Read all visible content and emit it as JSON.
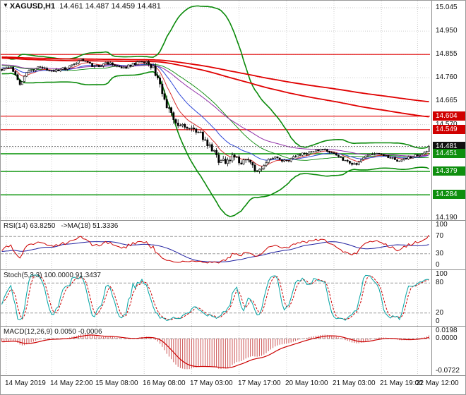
{
  "header": {
    "shift_marker": "▼",
    "symbol_period": "XAGUSD,H1",
    "ohlc_text": "14.461 14.487 14.459 14.481"
  },
  "chart_data": {
    "type": "candlestick",
    "symbol": "XAGUSD",
    "timeframe": "H1",
    "current": {
      "open": 14.461,
      "high": 14.487,
      "low": 14.459,
      "close": 14.481
    },
    "main": {
      "bars_visible": 190,
      "prehistory": {
        "bars": 60,
        "start_price": 14.85
      },
      "y_ticks": [
        [
          15.045,
          "15.045"
        ],
        [
          14.95,
          "14.950"
        ],
        [
          14.855,
          "14.855"
        ],
        [
          14.76,
          "14.760"
        ],
        [
          14.665,
          "14.665"
        ],
        [
          14.57,
          "14.570"
        ],
        [
          14.475,
          "14.475"
        ],
        [
          14.38,
          "14.380"
        ],
        [
          14.285,
          "14.285"
        ],
        [
          14.19,
          "14.190"
        ]
      ],
      "x_labels": [
        {
          "bar": 2,
          "text": "14 May 2019"
        },
        {
          "bar": 22,
          "text": "14 May 22:00"
        },
        {
          "bar": 42,
          "text": "15 May 08:00"
        },
        {
          "bar": 63,
          "text": "16 May 08:00"
        },
        {
          "bar": 84,
          "text": "17 May 03:00"
        },
        {
          "bar": 105,
          "text": "17 May 17:00"
        },
        {
          "bar": 126,
          "text": "20 May 10:00"
        },
        {
          "bar": 147,
          "text": "21 May 03:00"
        },
        {
          "bar": 168,
          "text": "21 May 19:00"
        },
        {
          "bar": 184,
          "text": "22 May 12:00"
        }
      ],
      "price_keyframes": [
        [
          0,
          14.79
        ],
        [
          4,
          14.802
        ],
        [
          8,
          14.738
        ],
        [
          12,
          14.788
        ],
        [
          17,
          14.806
        ],
        [
          23,
          14.788
        ],
        [
          29,
          14.8
        ],
        [
          35,
          14.832
        ],
        [
          41,
          14.805
        ],
        [
          47,
          14.82
        ],
        [
          53,
          14.798
        ],
        [
          59,
          14.818
        ],
        [
          64,
          14.83
        ],
        [
          67,
          14.8
        ],
        [
          70,
          14.728
        ],
        [
          73,
          14.64
        ],
        [
          76,
          14.59
        ],
        [
          80,
          14.565
        ],
        [
          84,
          14.552
        ],
        [
          88,
          14.53
        ],
        [
          91,
          14.492
        ],
        [
          94,
          14.452
        ],
        [
          97,
          14.415
        ],
        [
          100,
          14.428
        ],
        [
          103,
          14.445
        ],
        [
          106,
          14.412
        ],
        [
          109,
          14.43
        ],
        [
          112,
          14.378
        ],
        [
          115,
          14.4
        ],
        [
          118,
          14.432
        ],
        [
          121,
          14.443
        ],
        [
          124,
          14.418
        ],
        [
          127,
          14.428
        ],
        [
          130,
          14.44
        ],
        [
          133,
          14.448
        ],
        [
          136,
          14.455
        ],
        [
          139,
          14.463
        ],
        [
          142,
          14.468
        ],
        [
          145,
          14.458
        ],
        [
          148,
          14.442
        ],
        [
          151,
          14.428
        ],
        [
          154,
          14.415
        ],
        [
          157,
          14.402
        ],
        [
          160,
          14.432
        ],
        [
          163,
          14.45
        ],
        [
          166,
          14.448
        ],
        [
          169,
          14.442
        ],
        [
          172,
          14.438
        ],
        [
          175,
          14.42
        ],
        [
          178,
          14.428
        ],
        [
          181,
          14.438
        ],
        [
          184,
          14.446
        ],
        [
          186,
          14.452
        ],
        [
          188,
          14.465
        ],
        [
          189,
          14.481
        ]
      ],
      "volatility_keyframes": [
        [
          0,
          0.013
        ],
        [
          62,
          0.013
        ],
        [
          68,
          0.028
        ],
        [
          74,
          0.042
        ],
        [
          82,
          0.026
        ],
        [
          92,
          0.03
        ],
        [
          104,
          0.026
        ],
        [
          112,
          0.024
        ],
        [
          120,
          0.016
        ],
        [
          140,
          0.013
        ],
        [
          155,
          0.015
        ],
        [
          170,
          0.012
        ],
        [
          189,
          0.01
        ]
      ],
      "hlines": [
        {
          "price": 14.855,
          "color": "#e00000",
          "width": 1.2
        },
        {
          "price": 14.604,
          "color": "#e00000",
          "width": 1.2
        },
        {
          "price": 14.549,
          "color": "#e00000",
          "width": 1.2
        },
        {
          "price": 14.451,
          "color": "#009000",
          "width": 1.4
        },
        {
          "price": 14.379,
          "color": "#009000",
          "width": 1.4
        },
        {
          "price": 14.284,
          "color": "#009000",
          "width": 1.4
        }
      ],
      "price_tags": [
        {
          "price": 14.604,
          "label": "14.604",
          "bg": "#d00000"
        },
        {
          "price": 14.549,
          "label": "14.549",
          "bg": "#d00000"
        },
        {
          "price": 14.481,
          "label": "14.481",
          "bg": "#111111"
        },
        {
          "price": 14.451,
          "label": "14.451",
          "bg": "#0e8f0e"
        },
        {
          "price": 14.379,
          "label": "14.379",
          "bg": "#0e8f0e"
        },
        {
          "price": 14.284,
          "label": "14.284",
          "bg": "#0e8f0e"
        }
      ],
      "overlays": {
        "bollinger": {
          "period": 40,
          "dev": 3,
          "color": "#0a8a0a"
        },
        "ma_long": [
          {
            "period": 260,
            "color": "#e00000"
          },
          {
            "period": 400,
            "color": "#e00000"
          }
        ],
        "ma_short": [
          {
            "period": 9,
            "color": "#d83030"
          },
          {
            "period": 21,
            "color": "#3048d8"
          },
          {
            "period": 50,
            "color": "#9030a8"
          }
        ]
      }
    },
    "rsi": {
      "label": "RSI(14) 63.8250",
      "ma_label": "->MA(18) 51.3336",
      "period": 14,
      "ma_period": 18,
      "value": 63.825,
      "ma_value": 51.3336,
      "levels": [
        70,
        30
      ],
      "ticks": [
        [
          100,
          "100"
        ],
        [
          70,
          "70"
        ],
        [
          30,
          "30"
        ],
        [
          0,
          "0"
        ]
      ],
      "colors": {
        "main": "#cc0000",
        "ma": "#2020a0"
      }
    },
    "stoch": {
      "label": "Stoch(5,3,3) 100.0000 91.3437",
      "k_period": 5,
      "d_period": 3,
      "slowing": 3,
      "value": 100.0,
      "signal_value": 91.3437,
      "levels": [
        80,
        20
      ],
      "ticks": [
        [
          100,
          "100"
        ],
        [
          80,
          "80"
        ],
        [
          20,
          "20"
        ],
        [
          0,
          "0"
        ]
      ],
      "colors": {
        "main": "#00a3a3",
        "signal": "#cc0000"
      }
    },
    "macd": {
      "label": "MACD(12,26,9) 0.0050 -0.0006",
      "fast": 12,
      "slow": 26,
      "signal_period": 9,
      "value": 0.005,
      "signal_value": -0.0006,
      "range": [
        -0.0722,
        0.0198
      ],
      "ticks": [
        [
          0.0198,
          "0.0198"
        ],
        [
          0,
          "0.0000"
        ],
        [
          -0.0722,
          "-0.0722"
        ]
      ],
      "colors": {
        "hist": "#cc5555",
        "signal": "#cc0000"
      }
    }
  }
}
